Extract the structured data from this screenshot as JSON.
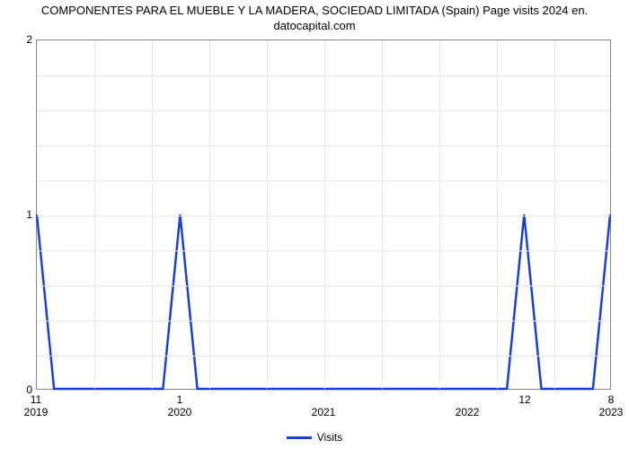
{
  "chart": {
    "type": "line",
    "title_line1": "COMPONENTES PARA EL MUEBLE Y LA MADERA, SOCIEDAD LIMITADA (Spain) Page visits 2024 en.",
    "title_line2": "datocapital.com",
    "title_fontsize": 13,
    "background_color": "#ffffff",
    "grid_color": "#e8e8e8",
    "axis_color": "#888888",
    "line_color": "#1a3fd4",
    "line_width": 2.5,
    "ylim": [
      0,
      2
    ],
    "yticks": [
      0,
      1,
      2
    ],
    "x_categories": [
      "2019",
      "2020",
      "2021",
      "2022",
      "2023"
    ],
    "n_x_gridlines": 10,
    "n_y_gridlines_minor": 10,
    "series_name": "Visits",
    "data_points": [
      {
        "x": 0.0,
        "y": 1,
        "label": "11"
      },
      {
        "x": 0.03,
        "y": 0,
        "label": ""
      },
      {
        "x": 0.22,
        "y": 0,
        "label": ""
      },
      {
        "x": 0.25,
        "y": 1,
        "label": "1"
      },
      {
        "x": 0.28,
        "y": 0,
        "label": ""
      },
      {
        "x": 0.82,
        "y": 0,
        "label": ""
      },
      {
        "x": 0.85,
        "y": 1,
        "label": "12"
      },
      {
        "x": 0.88,
        "y": 0,
        "label": ""
      },
      {
        "x": 0.97,
        "y": 0,
        "label": ""
      },
      {
        "x": 1.0,
        "y": 1,
        "label": "8"
      }
    ],
    "legend_label": "Visits"
  }
}
